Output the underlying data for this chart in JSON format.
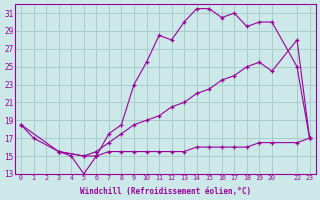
{
  "xlabel": "Windchill (Refroidissement éolien,°C)",
  "bg_color": "#cce8e8",
  "grid_color": "#aacccc",
  "line_color": "#990099",
  "ylim": [
    13,
    32
  ],
  "xlim": [
    -0.5,
    23.5
  ],
  "yticks": [
    13,
    15,
    17,
    19,
    21,
    23,
    25,
    27,
    29,
    31
  ],
  "xticks": [
    0,
    1,
    2,
    3,
    4,
    5,
    6,
    7,
    8,
    9,
    10,
    11,
    12,
    13,
    14,
    15,
    16,
    17,
    18,
    19,
    20,
    22,
    23
  ],
  "xtick_labels": [
    "0",
    "1",
    "2",
    "3",
    "4",
    "5",
    "6",
    "7",
    "8",
    "9",
    "10",
    "11",
    "12",
    "13",
    "14",
    "15",
    "16",
    "17",
    "18",
    "19",
    "20",
    "22",
    "23"
  ],
  "line1_x": [
    0,
    1,
    3,
    4,
    5,
    6,
    7,
    8,
    9,
    10,
    11,
    12,
    13,
    14,
    15,
    16,
    17,
    18,
    19,
    20,
    22,
    23
  ],
  "line1_y": [
    18.5,
    17,
    15.5,
    15,
    13,
    15,
    17.5,
    18.5,
    23,
    25.5,
    28.5,
    28,
    30,
    31.5,
    31.5,
    30.5,
    31,
    29.5,
    30,
    30,
    25,
    17
  ],
  "line2_x": [
    0,
    3,
    5,
    6,
    7,
    8,
    9,
    10,
    11,
    12,
    13,
    14,
    15,
    16,
    17,
    18,
    19,
    20,
    22,
    23
  ],
  "line2_y": [
    18.5,
    15.5,
    15,
    15.5,
    16.5,
    17.5,
    18.5,
    19,
    19.5,
    20.5,
    21,
    22,
    22.5,
    23.5,
    24,
    25,
    25.5,
    24.5,
    28,
    17
  ],
  "line3_x": [
    3,
    5,
    6,
    7,
    8,
    9,
    10,
    11,
    12,
    13,
    14,
    15,
    16,
    17,
    18,
    19,
    20,
    22,
    23
  ],
  "line3_y": [
    15.5,
    15,
    15,
    15.5,
    15.5,
    15.5,
    15.5,
    15.5,
    15.5,
    15.5,
    16,
    16,
    16,
    16,
    16,
    16.5,
    16.5,
    16.5,
    17
  ]
}
